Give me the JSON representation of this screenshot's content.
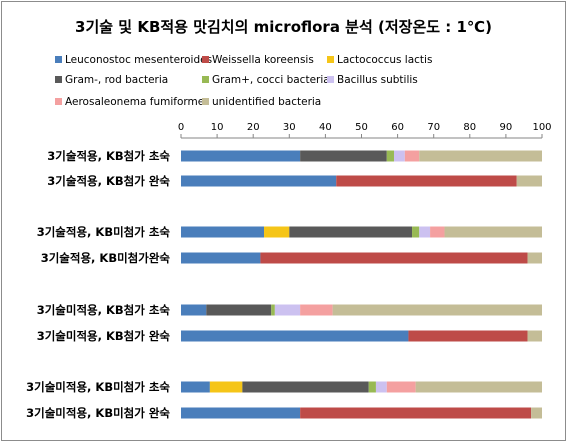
{
  "chart_data": {
    "type": "bar",
    "orientation": "horizontal-stacked",
    "title": "3기술 및 KB적용 맛김치의 microflora 분석 (저장온도 : 1℃)",
    "xlim": [
      0,
      100
    ],
    "xticks": [
      0,
      10,
      20,
      30,
      40,
      50,
      60,
      70,
      80,
      90,
      100
    ],
    "categories": [
      "3기술적용, KB첨가 초숙",
      "3기술적용, KB첨가 완숙",
      "3기술적용, KB미첨가 초숙",
      "3기술적용, KB미첨가완숙",
      "3기술미적용, KB첨가 초숙",
      "3기술미적용, KB첨가 완숙",
      "3기술미적용, KB미첨가 초숙",
      "3기술미적용, KB미첨가 완숙"
    ],
    "series": [
      {
        "name": "Leuconostoc mesenteroides",
        "color": "#4a7ebb",
        "values": [
          33,
          43,
          23,
          22,
          7,
          63,
          8,
          33
        ]
      },
      {
        "name": "Weissella koreensis",
        "color": "#be4b48",
        "values": [
          0,
          50,
          0,
          74,
          0,
          33,
          0,
          64
        ]
      },
      {
        "name": "Lactococcus lactis",
        "color": "#f5c518",
        "values": [
          0,
          0,
          7,
          0,
          0,
          0,
          9,
          0
        ]
      },
      {
        "name": "Gram-, rod bacteria",
        "color": "#595959",
        "values": [
          24,
          0,
          34,
          0,
          18,
          0,
          35,
          0
        ]
      },
      {
        "name": "Gram+, cocci bacteria",
        "color": "#98b954",
        "values": [
          2,
          0,
          2,
          0,
          1,
          0,
          2,
          0
        ]
      },
      {
        "name": "Bacillus subtilis",
        "color": "#ccc1f0",
        "values": [
          3,
          0,
          3,
          0,
          7,
          0,
          3,
          0
        ]
      },
      {
        "name": "Aerosaleonema fumiforme",
        "color": "#f4a0a0",
        "values": [
          4,
          0,
          4,
          0,
          9,
          0,
          8,
          0
        ]
      },
      {
        "name": "unidentified bacteria",
        "color": "#c4bd97",
        "values": [
          34,
          7,
          27,
          4,
          58,
          4,
          35,
          3
        ]
      }
    ],
    "grid": false,
    "legend_position": "top"
  }
}
